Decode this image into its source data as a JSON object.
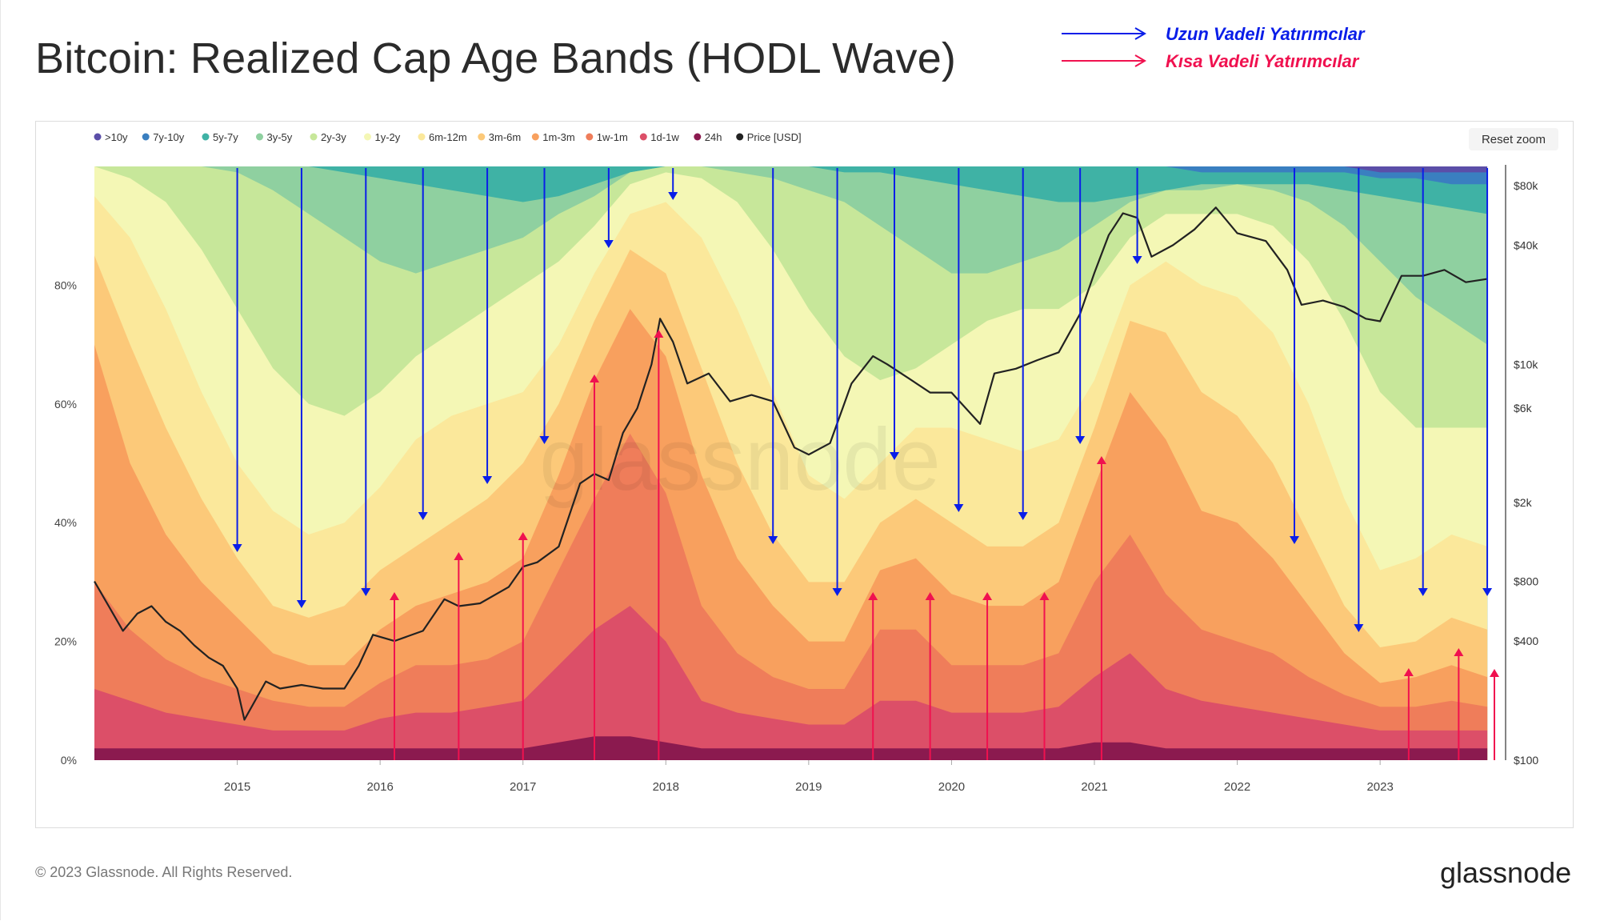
{
  "title": "Bitcoin: Realized Cap Age Bands (HODL Wave)",
  "annotations": {
    "long_term": {
      "label": "Uzun Vadeli Yatırımcılar",
      "color": "#0a1ee8"
    },
    "short_term": {
      "label": "Kısa Vadeli Yatırımcılar",
      "color": "#f0114f"
    }
  },
  "reset_zoom": "Reset zoom",
  "watermark": "glassnode",
  "footer": {
    "copyright": "© 2023 Glassnode. All Rights Reserved.",
    "logo": "glassnode"
  },
  "chart_data": {
    "type": "area",
    "title": "Bitcoin: Realized Cap Age Bands (HODL Wave)",
    "legend": [
      {
        "label": ">10y",
        "color": "#5b4ea8"
      },
      {
        "label": "7y-10y",
        "color": "#3a7fc0"
      },
      {
        "label": "5y-7y",
        "color": "#3fb2a5"
      },
      {
        "label": "3y-5y",
        "color": "#8fd0a0"
      },
      {
        "label": "2y-3y",
        "color": "#c7e79a"
      },
      {
        "label": "1y-2y",
        "color": "#f4f7b5"
      },
      {
        "label": "6m-12m",
        "color": "#fbe89b"
      },
      {
        "label": "3m-6m",
        "color": "#fcc979"
      },
      {
        "label": "1m-3m",
        "color": "#f8a05e"
      },
      {
        "label": "1w-1m",
        "color": "#ef7d5a"
      },
      {
        "label": "1d-1w",
        "color": "#dc4f68"
      },
      {
        "label": "24h",
        "color": "#8b1a4f"
      },
      {
        "label": "Price [USD]",
        "color": "#222222"
      }
    ],
    "x_ticks": [
      "2015",
      "2016",
      "2017",
      "2018",
      "2019",
      "2020",
      "2021",
      "2022",
      "2023"
    ],
    "x_range": [
      2014.0,
      2023.8
    ],
    "y_left_ticks": [
      "0%",
      "20%",
      "40%",
      "60%",
      "80%"
    ],
    "y_left_range": [
      0,
      100
    ],
    "y_right_ticks": [
      "$100",
      "$400",
      "$800",
      "$2k",
      "$6k",
      "$10k",
      "$40k",
      "$80k"
    ],
    "y_right_tick_values": [
      100,
      400,
      800,
      2000,
      6000,
      10000,
      40000,
      80000
    ],
    "y_right_range": [
      100,
      100000
    ],
    "time": [
      2014.0,
      2014.25,
      2014.5,
      2014.75,
      2015.0,
      2015.25,
      2015.5,
      2015.75,
      2016.0,
      2016.25,
      2016.5,
      2016.75,
      2017.0,
      2017.25,
      2017.5,
      2017.75,
      2018.0,
      2018.25,
      2018.5,
      2018.75,
      2019.0,
      2019.25,
      2019.5,
      2019.75,
      2020.0,
      2020.25,
      2020.5,
      2020.75,
      2021.0,
      2021.25,
      2021.5,
      2021.75,
      2022.0,
      2022.25,
      2022.5,
      2022.75,
      2023.0,
      2023.25,
      2023.5,
      2023.75
    ],
    "bands_cumulative_pct": [
      {
        "name": "24h",
        "values": [
          2,
          2,
          2,
          2,
          2,
          2,
          2,
          2,
          2,
          2,
          2,
          2,
          2,
          3,
          4,
          4,
          3,
          2,
          2,
          2,
          2,
          2,
          2,
          2,
          2,
          2,
          2,
          2,
          3,
          3,
          2,
          2,
          2,
          2,
          2,
          2,
          2,
          2,
          2,
          2
        ]
      },
      {
        "name": "1d-1w",
        "values": [
          12,
          10,
          8,
          7,
          6,
          5,
          5,
          5,
          7,
          8,
          8,
          9,
          10,
          16,
          22,
          26,
          20,
          10,
          8,
          7,
          6,
          6,
          10,
          10,
          8,
          8,
          8,
          9,
          14,
          18,
          12,
          10,
          9,
          8,
          7,
          6,
          5,
          5,
          5,
          5
        ]
      },
      {
        "name": "1w-1m",
        "values": [
          30,
          22,
          17,
          14,
          12,
          10,
          9,
          9,
          13,
          16,
          16,
          17,
          20,
          32,
          44,
          55,
          45,
          26,
          18,
          14,
          12,
          12,
          22,
          22,
          16,
          16,
          16,
          18,
          30,
          38,
          28,
          22,
          20,
          18,
          14,
          11,
          9,
          9,
          10,
          9
        ]
      },
      {
        "name": "1m-3m",
        "values": [
          70,
          50,
          38,
          30,
          24,
          18,
          16,
          16,
          22,
          26,
          28,
          30,
          34,
          48,
          64,
          76,
          68,
          48,
          34,
          26,
          20,
          20,
          32,
          34,
          28,
          26,
          26,
          30,
          46,
          62,
          54,
          42,
          40,
          34,
          26,
          18,
          13,
          14,
          16,
          14
        ]
      },
      {
        "name": "3m-6m",
        "values": [
          85,
          70,
          56,
          44,
          34,
          26,
          24,
          26,
          32,
          36,
          40,
          44,
          50,
          60,
          74,
          86,
          82,
          66,
          50,
          38,
          30,
          30,
          40,
          44,
          40,
          36,
          36,
          40,
          56,
          74,
          72,
          62,
          58,
          50,
          38,
          26,
          19,
          20,
          24,
          22
        ]
      },
      {
        "name": "6m-12m",
        "values": [
          95,
          88,
          76,
          62,
          50,
          42,
          38,
          40,
          46,
          54,
          58,
          60,
          62,
          70,
          82,
          92,
          94,
          88,
          76,
          62,
          48,
          44,
          50,
          56,
          56,
          54,
          52,
          54,
          64,
          80,
          84,
          80,
          78,
          72,
          60,
          44,
          32,
          34,
          38,
          36
        ]
      },
      {
        "name": "1y-2y",
        "values": [
          100,
          98,
          94,
          86,
          76,
          66,
          60,
          58,
          62,
          68,
          72,
          76,
          80,
          84,
          90,
          97,
          99,
          98,
          94,
          86,
          76,
          68,
          64,
          66,
          70,
          74,
          76,
          76,
          80,
          88,
          92,
          92,
          92,
          90,
          84,
          74,
          62,
          56,
          56,
          56
        ]
      },
      {
        "name": "2y-3y",
        "values": [
          100,
          100,
          100,
          100,
          99,
          96,
          92,
          88,
          84,
          82,
          84,
          86,
          88,
          92,
          95,
          99,
          100,
          100,
          99,
          98,
          96,
          94,
          90,
          86,
          82,
          82,
          84,
          86,
          90,
          94,
          96,
          96,
          97,
          96,
          94,
          90,
          84,
          78,
          74,
          70
        ]
      },
      {
        "name": "3y-5y",
        "values": [
          100,
          100,
          100,
          100,
          100,
          100,
          100,
          99,
          98,
          97,
          96,
          95,
          94,
          95,
          97,
          99,
          100,
          100,
          100,
          100,
          100,
          99,
          99,
          98,
          97,
          96,
          95,
          94,
          94,
          95,
          96,
          97,
          97,
          97,
          97,
          96,
          95,
          94,
          93,
          92
        ]
      },
      {
        "name": "5y-7y",
        "values": [
          100,
          100,
          100,
          100,
          100,
          100,
          100,
          100,
          100,
          100,
          100,
          100,
          100,
          100,
          100,
          100,
          100,
          100,
          100,
          100,
          100,
          100,
          100,
          100,
          100,
          100,
          100,
          100,
          100,
          100,
          100,
          99,
          99,
          99,
          99,
          99,
          98,
          98,
          97,
          97
        ]
      },
      {
        "name": "7y-10y",
        "values": [
          100,
          100,
          100,
          100,
          100,
          100,
          100,
          100,
          100,
          100,
          100,
          100,
          100,
          100,
          100,
          100,
          100,
          100,
          100,
          100,
          100,
          100,
          100,
          100,
          100,
          100,
          100,
          100,
          100,
          100,
          100,
          100,
          100,
          100,
          100,
          100,
          99,
          99,
          99,
          99
        ]
      },
      {
        "name": ">10y",
        "values": [
          100,
          100,
          100,
          100,
          100,
          100,
          100,
          100,
          100,
          100,
          100,
          100,
          100,
          100,
          100,
          100,
          100,
          100,
          100,
          100,
          100,
          100,
          100,
          100,
          100,
          100,
          100,
          100,
          100,
          100,
          100,
          100,
          100,
          100,
          100,
          100,
          100,
          100,
          100,
          100
        ]
      }
    ],
    "price_series": {
      "name": "Price [USD]",
      "x": [
        2014.0,
        2014.1,
        2014.2,
        2014.3,
        2014.4,
        2014.5,
        2014.6,
        2014.7,
        2014.8,
        2014.9,
        2015.0,
        2015.05,
        2015.2,
        2015.3,
        2015.45,
        2015.6,
        2015.75,
        2015.85,
        2015.95,
        2016.1,
        2016.3,
        2016.45,
        2016.55,
        2016.7,
        2016.9,
        2017.0,
        2017.1,
        2017.25,
        2017.4,
        2017.5,
        2017.6,
        2017.7,
        2017.8,
        2017.9,
        2017.96,
        2018.05,
        2018.15,
        2018.3,
        2018.45,
        2018.6,
        2018.75,
        2018.9,
        2019.0,
        2019.15,
        2019.3,
        2019.45,
        2019.55,
        2019.7,
        2019.85,
        2020.0,
        2020.2,
        2020.3,
        2020.45,
        2020.6,
        2020.75,
        2020.9,
        2021.0,
        2021.1,
        2021.2,
        2021.3,
        2021.4,
        2021.55,
        2021.7,
        2021.85,
        2022.0,
        2022.2,
        2022.35,
        2022.45,
        2022.6,
        2022.75,
        2022.9,
        2023.0,
        2023.15,
        2023.3,
        2023.45,
        2023.6,
        2023.75
      ],
      "y": [
        800,
        600,
        450,
        550,
        600,
        500,
        450,
        380,
        330,
        300,
        230,
        160,
        250,
        230,
        240,
        230,
        230,
        300,
        430,
        400,
        450,
        650,
        600,
        620,
        750,
        950,
        1000,
        1200,
        2500,
        2800,
        2600,
        4500,
        6000,
        10000,
        17000,
        13000,
        8000,
        9000,
        6500,
        7000,
        6500,
        3800,
        3500,
        4000,
        8000,
        11000,
        10000,
        8500,
        7200,
        7200,
        5000,
        9000,
        9500,
        10500,
        11500,
        18000,
        29000,
        45000,
        58000,
        55000,
        35000,
        40000,
        48000,
        62000,
        46000,
        42000,
        30000,
        20000,
        21000,
        19500,
        17000,
        16500,
        28000,
        28000,
        30000,
        26000,
        27000
      ]
    },
    "annotation_markers": {
      "long_term_down_arrows": [
        2015.0,
        2015.45,
        2015.9,
        2016.3,
        2016.75,
        2017.15,
        2017.6,
        2018.05,
        2018.75,
        2019.2,
        2019.6,
        2020.05,
        2020.5,
        2020.9,
        2021.3,
        2022.4,
        2022.85,
        2023.3,
        2023.75
      ],
      "short_term_up_arrows": [
        2016.1,
        2016.55,
        2017.0,
        2017.5,
        2017.95,
        2019.45,
        2019.85,
        2020.25,
        2020.65,
        2021.05,
        2023.2,
        2023.55,
        2023.8
      ]
    }
  }
}
